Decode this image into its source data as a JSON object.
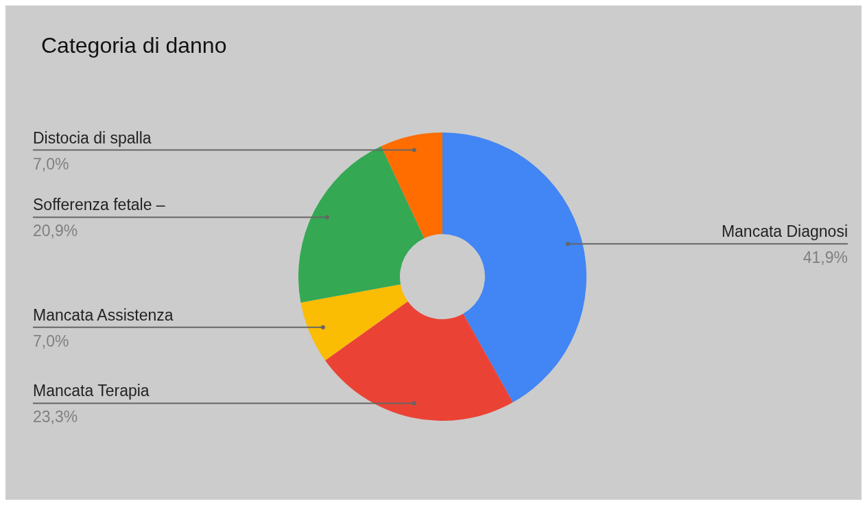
{
  "chart_data": {
    "type": "donut",
    "title": "Categoria di danno",
    "categories": [
      "Mancata Diagnosi",
      "Mancata Terapia",
      "Mancata Assistenza",
      "Sofferenza fetale –",
      "Distocia di spalla"
    ],
    "values": [
      41.9,
      23.3,
      7.0,
      20.9,
      7.0
    ],
    "value_labels": [
      "41,9%",
      "23,3%",
      "7,0%",
      "20,9%",
      "7,0%"
    ],
    "colors": [
      "#4285f4",
      "#ea4335",
      "#fbbc04",
      "#34a853",
      "#ff6d01"
    ]
  }
}
